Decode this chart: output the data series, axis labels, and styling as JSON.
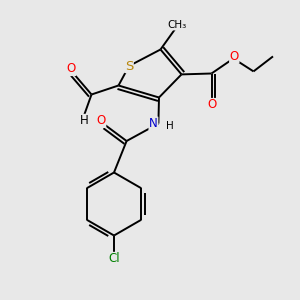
{
  "bg_color": "#e8e8e8",
  "atom_colors": {
    "S": "#b8860b",
    "O": "#ff0000",
    "N": "#0000cd",
    "Cl": "#008000",
    "C": "#000000",
    "H": "#000000"
  },
  "bond_color": "#000000",
  "lw": 1.4,
  "fs": 8.5
}
